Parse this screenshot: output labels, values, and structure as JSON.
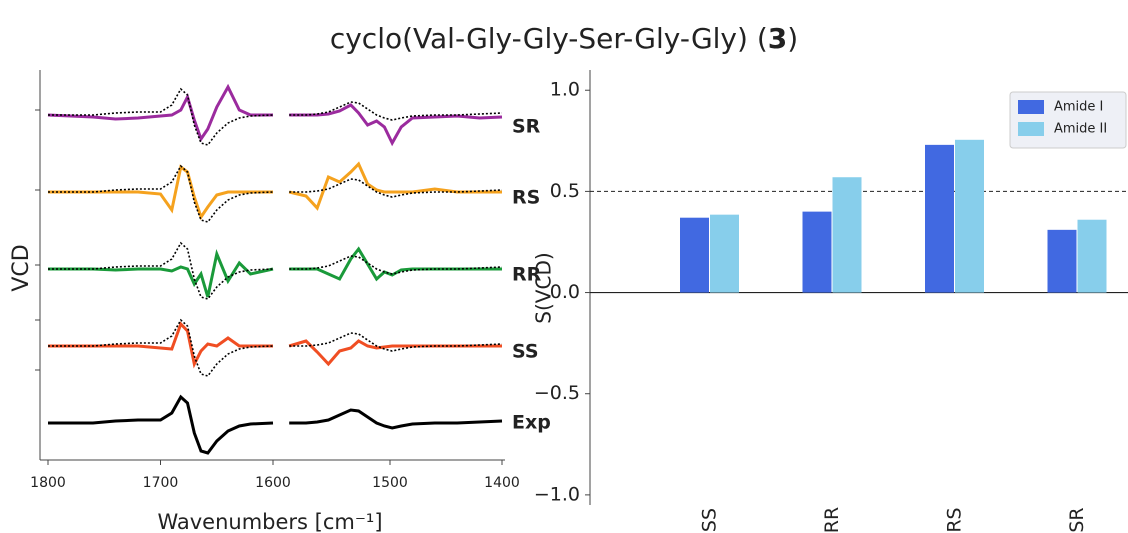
{
  "title_parts": [
    "cyclo(Val-Gly-Gly-Ser-Gly-Gly) (",
    "3",
    ")"
  ],
  "chart_data": [
    {
      "type": "line",
      "x_label": "Wavenumbers [cm⁻¹]",
      "y_label": "VCD",
      "panels": [
        {
          "xlim": [
            1800,
            1600
          ],
          "xticks": [
            1800,
            1700,
            1600
          ],
          "x": [
            1800,
            1760,
            1740,
            1720,
            1700,
            1690,
            1682,
            1676,
            1670,
            1664,
            1658,
            1650,
            1640,
            1630,
            1620,
            1600
          ]
        },
        {
          "xlim": [
            1600,
            1400
          ],
          "xticks": [
            1500,
            1400
          ],
          "x": [
            1590,
            1575,
            1565,
            1555,
            1545,
            1535,
            1528,
            1520,
            1512,
            1505,
            1498,
            1490,
            1480,
            1460,
            1440,
            1420,
            1400
          ]
        }
      ],
      "series": [
        {
          "name": "SR",
          "color": "#9b2b9e",
          "values": [
            [
              0,
              -2,
              -4,
              -3,
              -1,
              0,
              5,
              18,
              -5,
              -24,
              -14,
              8,
              28,
              5,
              0,
              0
            ],
            [
              0,
              0,
              0,
              1,
              4,
              10,
              2,
              -10,
              -6,
              -12,
              -28,
              -12,
              -3,
              -2,
              -1,
              -3,
              -2
            ]
          ]
        },
        {
          "name": "RS",
          "color": "#f5a21e",
          "values": [
            [
              0,
              0,
              0,
              0,
              -2,
              -18,
              25,
              20,
              -5,
              -25,
              -15,
              -3,
              0,
              0,
              0,
              0
            ],
            [
              0,
              -4,
              -16,
              15,
              10,
              20,
              28,
              8,
              2,
              0,
              0,
              0,
              0,
              3,
              0,
              0,
              0
            ]
          ]
        },
        {
          "name": "RR",
          "color": "#1a9a3a",
          "values": [
            [
              0,
              0,
              -1,
              0,
              0,
              -2,
              2,
              0,
              -15,
              -5,
              -28,
              15,
              -12,
              6,
              -5,
              0
            ],
            [
              0,
              0,
              0,
              -5,
              -10,
              10,
              20,
              5,
              -10,
              -3,
              -6,
              -1,
              0,
              0,
              0,
              0,
              0
            ]
          ]
        },
        {
          "name": "SS",
          "color": "#f04e23",
          "values": [
            [
              0,
              0,
              0,
              0,
              -2,
              -3,
              22,
              15,
              -18,
              -5,
              2,
              0,
              8,
              0,
              0,
              0
            ],
            [
              0,
              5,
              -6,
              -18,
              -5,
              -2,
              5,
              0,
              -2,
              -1,
              0,
              0,
              0,
              0,
              0,
              0,
              0
            ]
          ]
        },
        {
          "name": "Exp",
          "color": "#000000",
          "values": [
            [
              0,
              0,
              2,
              3,
              3,
              10,
              26,
              20,
              -10,
              -28,
              -30,
              -18,
              -8,
              -3,
              -1,
              0
            ],
            [
              0,
              0,
              1,
              3,
              8,
              13,
              12,
              6,
              0,
              -3,
              -5,
              -3,
              -1,
              0,
              0,
              1,
              2
            ]
          ]
        }
      ]
    },
    {
      "type": "bar",
      "y_label": "S(VCD)",
      "categories": [
        "SS",
        "RR",
        "RS",
        "SR"
      ],
      "series": [
        {
          "name": "Amide I",
          "color": "#4169e1",
          "values": [
            0.37,
            0.4,
            0.73,
            0.31
          ]
        },
        {
          "name": "Amide II",
          "color": "#87ceeb",
          "values": [
            0.385,
            0.57,
            0.755,
            0.36
          ]
        }
      ],
      "ylim": [
        -1.05,
        1.1
      ],
      "yticks": [
        -1.0,
        -0.5,
        0.0,
        0.5,
        1.0
      ],
      "yticks_labels": [
        {
          "value": -1.0,
          "label": "−1.0"
        },
        {
          "value": -0.5,
          "label": "−0.5"
        },
        {
          "value": 0.0,
          "label": "0.0"
        },
        {
          "value": 0.5,
          "label": "0.5"
        },
        {
          "value": 1.0,
          "label": "1.0"
        }
      ],
      "reference_line": 0.5,
      "legend": "upper right"
    }
  ]
}
